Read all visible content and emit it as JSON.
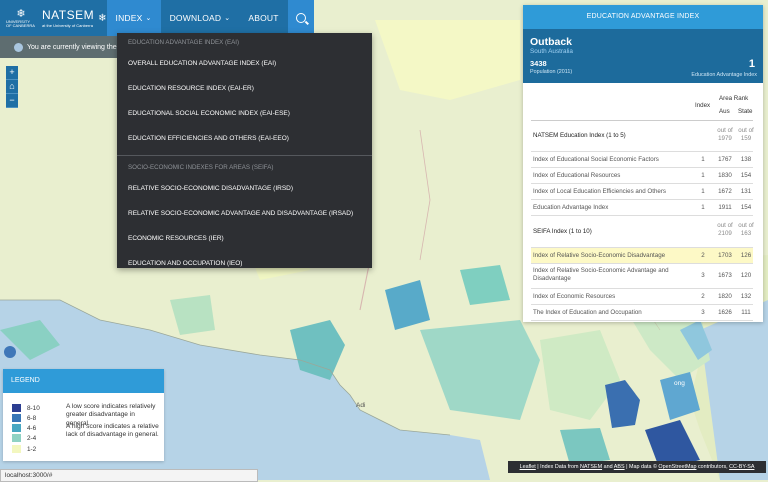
{
  "colors": {
    "nav": "#1f6fa5",
    "nav_active": "#2f8ad0",
    "panel_header": "#2f9bd8",
    "region_header": "#1d6b9c",
    "dropdown_bg": "#2d2f33",
    "legend_swatches": [
      "#2c3e91",
      "#3876b6",
      "#48a7c2",
      "#8fd2c3",
      "#f3f7bf"
    ]
  },
  "navbar": {
    "logo_text": "UNIVERSITY OF CANBERRA",
    "brand_title": "NATSEM",
    "brand_sub": "at the University of Canberra",
    "items": [
      {
        "label": "INDEX",
        "caret": "⌄"
      },
      {
        "label": "DOWNLOAD",
        "caret": "⌄"
      },
      {
        "label": "ABOUT"
      }
    ],
    "search_icon": "search-icon"
  },
  "info_strip": {
    "text": "You are currently viewing the Ind"
  },
  "map_controls": {
    "zoom_in": "+",
    "home": "⌂",
    "zoom_out": "−"
  },
  "dropdown": {
    "header_eai": "EDUCATION ADVANTAGE INDEX (EAI)",
    "eai_items": [
      "OVERALL EDUCATION ADVANTAGE INDEX (EAI)",
      "EDUCATION RESOURCE INDEX (EAI-ER)",
      "EDUCATIONAL SOCIAL ECONOMIC INDEX (EAI-ESE)",
      "EDUCATION EFFICIENCIES AND OTHERS (EAI-EEO)"
    ],
    "header_seifa": "SOCIO-ECONOMIC INDEXES FOR AREAS (SEIFA)",
    "seifa_items": [
      "RELATIVE SOCIO-ECONOMIC DISADVANTAGE (IRSD)",
      "RELATIVE SOCIO-ECONOMIC ADVANTAGE AND DISADVANTAGE (IRSAD)",
      "ECONOMIC RESOURCES (IER)",
      "EDUCATION AND OCCUPATION (IEO)"
    ]
  },
  "panel": {
    "title": "EDUCATION ADVANTAGE INDEX",
    "region": "Outback",
    "state": "South Australia",
    "population": "3438",
    "population_label": "Population (2011)",
    "eai_value": "1",
    "eai_label": "Education Advantage Index",
    "col_index": "Index",
    "col_area_rank": "Area Rank",
    "col_aus": "Aus",
    "col_state": "State",
    "rows": [
      {
        "label": "NATSEM Education Index  (1 to 5)",
        "index": "",
        "aus": "out of 1979",
        "state": "out of 159",
        "section": true,
        "highlight": false
      },
      {
        "label": "Index of Educational Social Economic Factors",
        "index": "1",
        "aus": "1767",
        "state": "138",
        "section": false,
        "highlight": false
      },
      {
        "label": "Index of Educational Resources",
        "index": "1",
        "aus": "1830",
        "state": "154",
        "section": false,
        "highlight": false
      },
      {
        "label": "Index of Local Education Efficiencies and Others",
        "index": "1",
        "aus": "1672",
        "state": "131",
        "section": false,
        "highlight": false
      },
      {
        "label": "Education Advantage Index",
        "index": "1",
        "aus": "1911",
        "state": "154",
        "section": false,
        "highlight": false
      },
      {
        "label": "SEIFA Index  (1 to 10)",
        "index": "",
        "aus": "out of 2109",
        "state": "out of 163",
        "section": true,
        "highlight": false
      },
      {
        "label": "Index of Relative Socio-Economic Disadvantage",
        "index": "2",
        "aus": "1703",
        "state": "126",
        "section": false,
        "highlight": true
      },
      {
        "label": "Index of Relative Socio-Economic Advantage and Disadvantage",
        "index": "3",
        "aus": "1673",
        "state": "120",
        "section": false,
        "highlight": false
      },
      {
        "label": "Index of Economic Resources",
        "index": "2",
        "aus": "1820",
        "state": "132",
        "section": false,
        "highlight": false
      },
      {
        "label": "The Index of Education and Occupation",
        "index": "3",
        "aus": "1626",
        "state": "111",
        "section": false,
        "highlight": false
      }
    ]
  },
  "legend": {
    "title": "LEGEND",
    "ranges": [
      "8-10",
      "6-8",
      "4-6",
      "2-4",
      "1-2"
    ],
    "note1": "A low score indicates relatively greater disadvantage in general.",
    "note2": "A high score indicates a relative lack of disadvantage in general."
  },
  "map_labels": {
    "adelaide": "Adi",
    "sydney_hint": "ong"
  },
  "status_url": "localhost:3000/#",
  "attribution": {
    "leaflet": "Leaflet",
    "t1": " | Index Data from ",
    "natsem": "NATSEM",
    "t2": " and ",
    "abs": "ABS",
    "t3": " | Map data © ",
    "osm": "OpenStreetMap",
    "t4": " contributors, ",
    "license": "CC-BY-SA"
  }
}
